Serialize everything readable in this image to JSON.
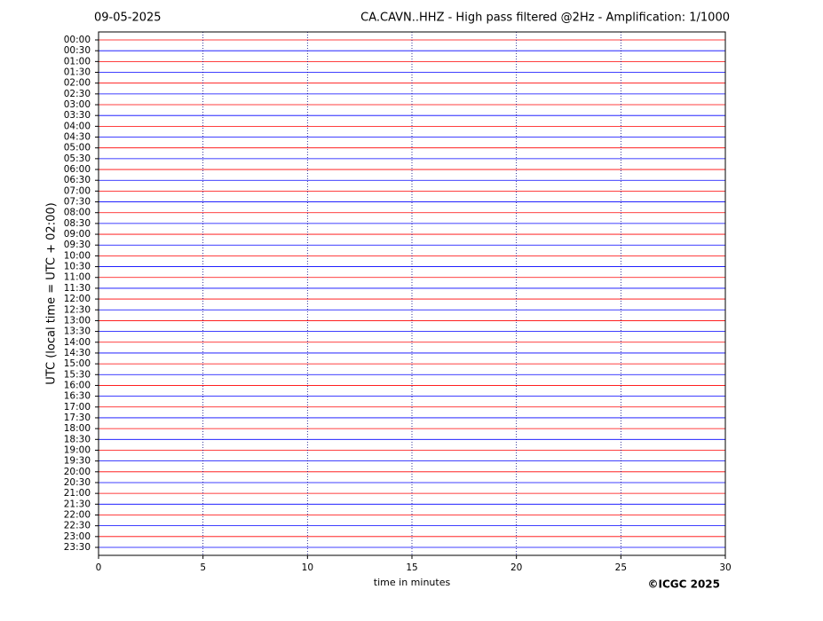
{
  "chart_data": {
    "type": "helicorder",
    "date": "09-05-2025",
    "title": "CA.CAVN..HHZ - High pass filtered @2Hz - Amplification: 1/1000",
    "ylabel": "UTC (local time = UTC + 02:00)",
    "xlabel": "time in minutes",
    "credit": "©ICGC 2025",
    "rows": [
      "00:00",
      "00:30",
      "01:00",
      "01:30",
      "02:00",
      "02:30",
      "03:00",
      "03:30",
      "04:00",
      "04:30",
      "05:00",
      "05:30",
      "06:00",
      "06:30",
      "07:00",
      "07:30",
      "08:00",
      "08:30",
      "09:00",
      "09:30",
      "10:00",
      "10:30",
      "11:00",
      "11:30",
      "12:00",
      "12:30",
      "13:00",
      "13:30",
      "14:00",
      "14:30",
      "15:00",
      "15:30",
      "16:00",
      "16:30",
      "17:00",
      "17:30",
      "18:00",
      "18:30",
      "19:00",
      "19:30",
      "20:00",
      "20:30",
      "21:00",
      "21:30",
      "22:00",
      "22:30",
      "23:00",
      "23:30"
    ],
    "colors": [
      "#ff0000",
      "#0000ff"
    ],
    "xlim": [
      0,
      30
    ],
    "xticks": [
      0,
      5,
      10,
      15,
      20,
      25,
      30
    ],
    "grid": true
  }
}
